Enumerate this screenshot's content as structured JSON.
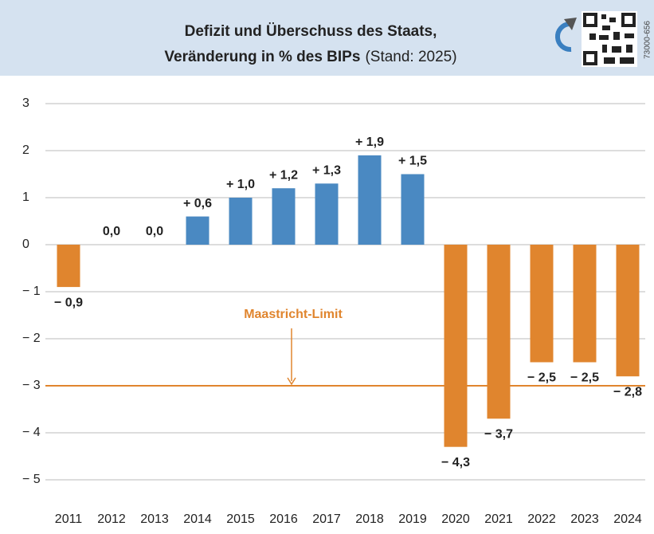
{
  "chart_data": {
    "type": "bar",
    "title": "Defizit und Überschuss des Staats,",
    "title_line2": "Veränderung in % des BIPs",
    "subtitle": "(Stand: 2025)",
    "code": "73000-656",
    "categories": [
      "2011",
      "2012",
      "2013",
      "2014",
      "2015",
      "2016",
      "2017",
      "2018",
      "2019",
      "2020",
      "2021",
      "2022",
      "2023",
      "2024"
    ],
    "values": [
      -0.9,
      0,
      0,
      0.6,
      1.0,
      1.2,
      1.3,
      1.9,
      1.5,
      -4.3,
      -3.7,
      -2.5,
      -2.5,
      -2.8
    ],
    "value_labels": [
      "− 0,9",
      "0,0",
      "0,0",
      "+ 0,6",
      "+ 1,0",
      "+ 1,2",
      "+ 1,3",
      "+ 1,9",
      "+ 1,5",
      "− 4,3",
      "− 3,7",
      "− 2,5",
      "− 2,5",
      "− 2,8"
    ],
    "positive_color": "#4a89c2",
    "negative_color": "#e0852e",
    "ylim": [
      -5.6,
      3.4
    ],
    "yticks": [
      {
        "value": -5,
        "label": "− 5"
      },
      {
        "value": -4,
        "label": "− 4"
      },
      {
        "value": -3,
        "label": "− 3"
      },
      {
        "value": -2,
        "label": "− 2"
      },
      {
        "value": -1,
        "label": "− 1"
      },
      0,
      1,
      2,
      3
    ],
    "grid": true,
    "reference_line": {
      "value": -3,
      "label": "Maastricht-Limit",
      "color": "#e0852e"
    }
  }
}
